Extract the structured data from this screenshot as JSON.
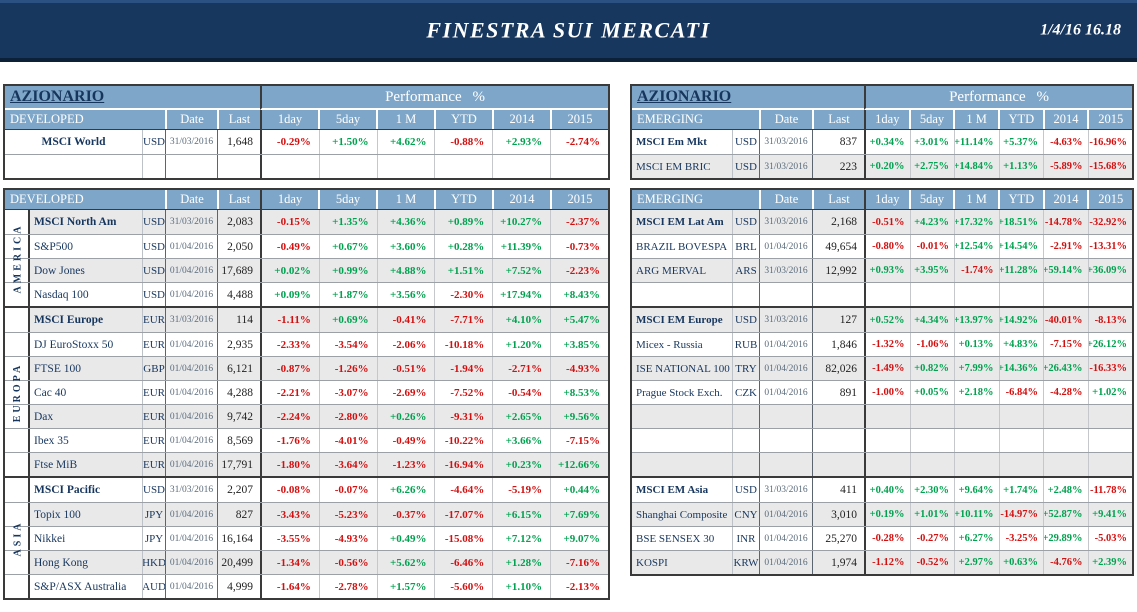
{
  "banner": {
    "title": "FINESTRA SUI MERCATI",
    "datetime": "1/4/16 16.18"
  },
  "colors": {
    "banner_bg": "#17375E",
    "band_blue": "#7EA6C9",
    "navy_text": "#17365D",
    "positive_green": "#00A24F",
    "negative_red": "#D31010",
    "shaded_row": "#E9E9EA"
  },
  "left_table": {
    "title": "AZIONARIO",
    "performance_header": "Performance %",
    "columns": [
      "Date",
      "Last",
      "1day",
      "5day",
      "1 M",
      "YTD",
      "2014",
      "2015"
    ],
    "top_block": {
      "section_label": "DEVELOPED",
      "rows": [
        {
          "name": "MSCI World",
          "bold": true,
          "ccy": "USD",
          "date": "31/03/2016",
          "last": "1,648",
          "perf": [
            "-0.29%",
            "+1.50%",
            "+4.62%",
            "-0.88%",
            "+2.93%",
            "-2.74%"
          ]
        },
        {
          "empty": true
        }
      ]
    },
    "main_block": {
      "section_label": "DEVELOPED",
      "groups": [
        {
          "region": "AMERICA",
          "rows": [
            {
              "name": "MSCI North Am",
              "bold": true,
              "ccy": "USD",
              "date": "31/03/2016",
              "last": "2,083",
              "perf": [
                "-0.15%",
                "+1.35%",
                "+4.36%",
                "+0.89%",
                "+10.27%",
                "-2.37%"
              ]
            },
            {
              "name": "S&P500",
              "ccy": "USD",
              "date": "01/04/2016",
              "last": "2,050",
              "perf": [
                "-0.49%",
                "+0.67%",
                "+3.60%",
                "+0.28%",
                "+11.39%",
                "-0.73%"
              ]
            },
            {
              "name": "Dow Jones",
              "ccy": "USD",
              "date": "01/04/2016",
              "last": "17,689",
              "perf": [
                "+0.02%",
                "+0.99%",
                "+4.88%",
                "+1.51%",
                "+7.52%",
                "-2.23%"
              ]
            },
            {
              "name": "Nasdaq 100",
              "ccy": "USD",
              "date": "01/04/2016",
              "last": "4,488",
              "perf": [
                "+0.09%",
                "+1.87%",
                "+3.56%",
                "-2.30%",
                "+17.94%",
                "+8.43%"
              ]
            }
          ]
        },
        {
          "region": "EUROPA",
          "rows": [
            {
              "name": "MSCI Europe",
              "bold": true,
              "ccy": "EUR",
              "date": "31/03/2016",
              "last": "114",
              "perf": [
                "-1.11%",
                "+0.69%",
                "-0.41%",
                "-7.71%",
                "+4.10%",
                "+5.47%"
              ]
            },
            {
              "name": "DJ EuroStoxx 50",
              "ccy": "EUR",
              "date": "01/04/2016",
              "last": "2,935",
              "perf": [
                "-2.33%",
                "-3.54%",
                "-2.06%",
                "-10.18%",
                "+1.20%",
                "+3.85%"
              ]
            },
            {
              "name": "FTSE 100",
              "ccy": "GBP",
              "date": "01/04/2016",
              "last": "6,121",
              "perf": [
                "-0.87%",
                "-1.26%",
                "-0.51%",
                "-1.94%",
                "-2.71%",
                "-4.93%"
              ]
            },
            {
              "name": "Cac 40",
              "ccy": "EUR",
              "date": "01/04/2016",
              "last": "4,288",
              "perf": [
                "-2.21%",
                "-3.07%",
                "-2.69%",
                "-7.52%",
                "-0.54%",
                "+8.53%"
              ]
            },
            {
              "name": "Dax",
              "ccy": "EUR",
              "date": "01/04/2016",
              "last": "9,742",
              "perf": [
                "-2.24%",
                "-2.80%",
                "+0.26%",
                "-9.31%",
                "+2.65%",
                "+9.56%"
              ]
            },
            {
              "name": "Ibex 35",
              "ccy": "EUR",
              "date": "01/04/2016",
              "last": "8,569",
              "perf": [
                "-1.76%",
                "-4.01%",
                "-0.49%",
                "-10.22%",
                "+3.66%",
                "-7.15%"
              ]
            },
            {
              "name": "Ftse MiB",
              "ccy": "EUR",
              "date": "01/04/2016",
              "last": "17,791",
              "perf": [
                "-1.80%",
                "-3.64%",
                "-1.23%",
                "-16.94%",
                "+0.23%",
                "+12.66%"
              ]
            }
          ]
        },
        {
          "region": "ASIA",
          "rows": [
            {
              "name": "MSCI Pacific",
              "bold": true,
              "ccy": "USD",
              "date": "31/03/2016",
              "last": "2,207",
              "perf": [
                "-0.08%",
                "-0.07%",
                "+6.26%",
                "-4.64%",
                "-5.19%",
                "+0.44%"
              ]
            },
            {
              "name": "Topix 100",
              "ccy": "JPY",
              "date": "01/04/2016",
              "last": "827",
              "perf": [
                "-3.43%",
                "-5.23%",
                "-0.37%",
                "-17.07%",
                "+6.15%",
                "+7.69%"
              ]
            },
            {
              "name": "Nikkei",
              "ccy": "JPY",
              "date": "01/04/2016",
              "last": "16,164",
              "perf": [
                "-3.55%",
                "-4.93%",
                "+0.49%",
                "-15.08%",
                "+7.12%",
                "+9.07%"
              ]
            },
            {
              "name": "Hong Kong",
              "ccy": "HKD",
              "date": "01/04/2016",
              "last": "20,499",
              "perf": [
                "-1.34%",
                "-0.56%",
                "+5.62%",
                "-6.46%",
                "+1.28%",
                "-7.16%"
              ]
            },
            {
              "name": "S&P/ASX Australia",
              "ccy": "AUD",
              "date": "01/04/2016",
              "last": "4,999",
              "perf": [
                "-1.64%",
                "-2.78%",
                "+1.57%",
                "-5.60%",
                "+1.10%",
                "-2.13%"
              ]
            }
          ]
        }
      ]
    }
  },
  "right_table": {
    "title": "AZIONARIO",
    "performance_header": "Performance %",
    "columns": [
      "Date",
      "Last",
      "1day",
      "5day",
      "1 M",
      "YTD",
      "2014",
      "2015"
    ],
    "top_block": {
      "section_label": "EMERGING",
      "rows": [
        {
          "name": "MSCI Em Mkt",
          "bold": true,
          "ccy": "USD",
          "date": "31/03/2016",
          "last": "837",
          "perf": [
            "+0.34%",
            "+3.01%",
            "+11.14%",
            "+5.37%",
            "-4.63%",
            "-16.96%"
          ]
        },
        {
          "name": "MSCI EM BRIC",
          "ccy": "USD",
          "date": "31/03/2016",
          "last": "223",
          "perf": [
            "+0.20%",
            "+2.75%",
            "+14.84%",
            "+1.13%",
            "-5.89%",
            "-15.68%"
          ]
        }
      ]
    },
    "main_block": {
      "section_label": "EMERGING",
      "groups": [
        {
          "rows": [
            {
              "name": "MSCI EM Lat Am",
              "bold": true,
              "ccy": "USD",
              "date": "31/03/2016",
              "last": "2,168",
              "perf": [
                "-0.51%",
                "+4.23%",
                "+17.32%",
                "+18.51%",
                "-14.78%",
                "-32.92%"
              ]
            },
            {
              "name": "BRAZIL BOVESPA",
              "ccy": "BRL",
              "date": "01/04/2016",
              "last": "49,654",
              "perf": [
                "-0.80%",
                "-0.01%",
                "+12.54%",
                "+14.54%",
                "-2.91%",
                "-13.31%"
              ]
            },
            {
              "name": "ARG MERVAL",
              "ccy": "ARS",
              "date": "31/03/2016",
              "last": "12,992",
              "perf": [
                "+0.93%",
                "+3.95%",
                "-1.74%",
                "+11.28%",
                "+59.14%",
                "+36.09%"
              ]
            },
            {
              "empty": true
            }
          ]
        },
        {
          "rows": [
            {
              "name": "MSCI EM Europe",
              "bold": true,
              "ccy": "USD",
              "date": "31/03/2016",
              "last": "127",
              "perf": [
                "+0.52%",
                "+4.34%",
                "+13.97%",
                "+14.92%",
                "-40.01%",
                "-8.13%"
              ]
            },
            {
              "name": "Micex - Russia",
              "ccy": "RUB",
              "date": "01/04/2016",
              "last": "1,846",
              "perf": [
                "-1.32%",
                "-1.06%",
                "+0.13%",
                "+4.83%",
                "-7.15%",
                "+26.12%"
              ]
            },
            {
              "name": "ISE NATIONAL 100",
              "ccy": "TRY",
              "date": "01/04/2016",
              "last": "82,026",
              "perf": [
                "-1.49%",
                "+0.82%",
                "+7.99%",
                "+14.36%",
                "+26.43%",
                "-16.33%"
              ]
            },
            {
              "name": "Prague Stock Exch.",
              "ccy": "CZK",
              "date": "01/04/2016",
              "last": "891",
              "perf": [
                "-1.00%",
                "+0.05%",
                "+2.18%",
                "-6.84%",
                "-4.28%",
                "+1.02%"
              ]
            },
            {
              "empty": true
            },
            {
              "empty": true
            },
            {
              "empty": true
            }
          ]
        },
        {
          "rows": [
            {
              "name": "MSCI EM Asia",
              "bold": true,
              "ccy": "USD",
              "date": "31/03/2016",
              "last": "411",
              "perf": [
                "+0.40%",
                "+2.30%",
                "+9.64%",
                "+1.74%",
                "+2.48%",
                "-11.78%"
              ]
            },
            {
              "name": "Shanghai Composite",
              "ccy": "CNY",
              "date": "01/04/2016",
              "last": "3,010",
              "perf": [
                "+0.19%",
                "+1.01%",
                "+10.11%",
                "-14.97%",
                "+52.87%",
                "+9.41%"
              ]
            },
            {
              "name": "BSE SENSEX 30",
              "ccy": "INR",
              "date": "01/04/2016",
              "last": "25,270",
              "perf": [
                "-0.28%",
                "-0.27%",
                "+6.27%",
                "-3.25%",
                "+29.89%",
                "-5.03%"
              ]
            },
            {
              "name": "KOSPI",
              "ccy": "KRW",
              "date": "01/04/2016",
              "last": "1,974",
              "perf": [
                "-1.12%",
                "-0.52%",
                "+2.97%",
                "+0.63%",
                "-4.76%",
                "+2.39%"
              ]
            }
          ]
        }
      ]
    }
  }
}
